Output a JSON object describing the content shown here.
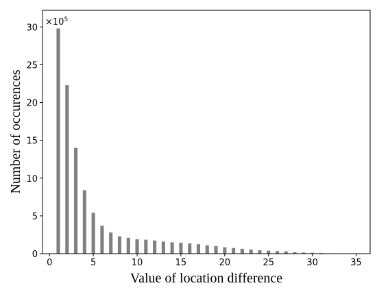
{
  "chart_data": {
    "type": "bar",
    "x_label": "Value of location difference",
    "y_label": "Number of occurences",
    "y_multiplier": {
      "base": "×10",
      "exponent": "5"
    },
    "x": [
      1,
      2,
      3,
      4,
      5,
      6,
      7,
      8,
      9,
      10,
      11,
      12,
      13,
      14,
      15,
      16,
      17,
      18,
      19,
      20,
      21,
      22,
      23,
      24,
      25,
      26,
      27,
      28,
      29,
      30,
      31,
      32,
      33,
      34,
      35
    ],
    "values": [
      29.8,
      22.3,
      14.0,
      8.4,
      5.4,
      3.7,
      2.8,
      2.3,
      2.1,
      1.9,
      1.85,
      1.75,
      1.6,
      1.5,
      1.45,
      1.35,
      1.25,
      1.1,
      1.0,
      0.85,
      0.75,
      0.65,
      0.55,
      0.45,
      0.4,
      0.35,
      0.3,
      0.2,
      0.15,
      0.12,
      0.08,
      0.05,
      0.03,
      0.02,
      0.01
    ],
    "color": "#808080",
    "xlim": [
      -0.8,
      36.6
    ],
    "xticks": [
      0,
      5,
      10,
      15,
      20,
      25,
      30,
      35
    ],
    "ylim": [
      0,
      32.2
    ],
    "yticks": [
      0,
      5,
      10,
      15,
      20,
      25,
      30
    ]
  }
}
